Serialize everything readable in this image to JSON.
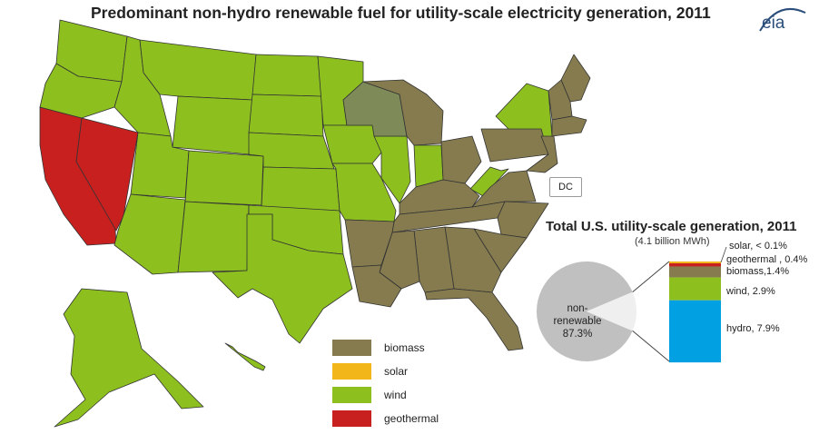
{
  "title": "Predominant non-hydro renewable fuel for utility-scale electricity generation, 2011",
  "logo": "eia",
  "dc_label": "DC",
  "legend": [
    {
      "label": "biomass",
      "color": "#857b4f"
    },
    {
      "label": "solar",
      "color": "#f2b61a"
    },
    {
      "label": "wind",
      "color": "#8dc01f"
    },
    {
      "label": "geothermal",
      "color": "#c8201f"
    }
  ],
  "pie": {
    "title": "Total U.S. utility-scale  generation, 2011",
    "subtitle": "(4.1 billion MWh)",
    "non_renewable_line1": "non-",
    "non_renewable_line2": "renewable",
    "non_renewable_value": "87.3%"
  },
  "bar": {
    "segments": [
      {
        "label": "solar, < 0.1%",
        "value": 0.1,
        "color": "#f2b61a"
      },
      {
        "label": "geothermal , 0.4%",
        "value": 0.4,
        "color": "#c8201f"
      },
      {
        "label": "biomass,1.4%",
        "value": 1.4,
        "color": "#857b4f"
      },
      {
        "label": "wind, 2.9%",
        "value": 2.9,
        "color": "#8dc01f"
      },
      {
        "label": "hydro, 7.9%",
        "value": 7.9,
        "color": "#00a0e3"
      }
    ]
  },
  "colors": {
    "map_outline": "#333333",
    "pie_gray": "#c0c0c0"
  }
}
